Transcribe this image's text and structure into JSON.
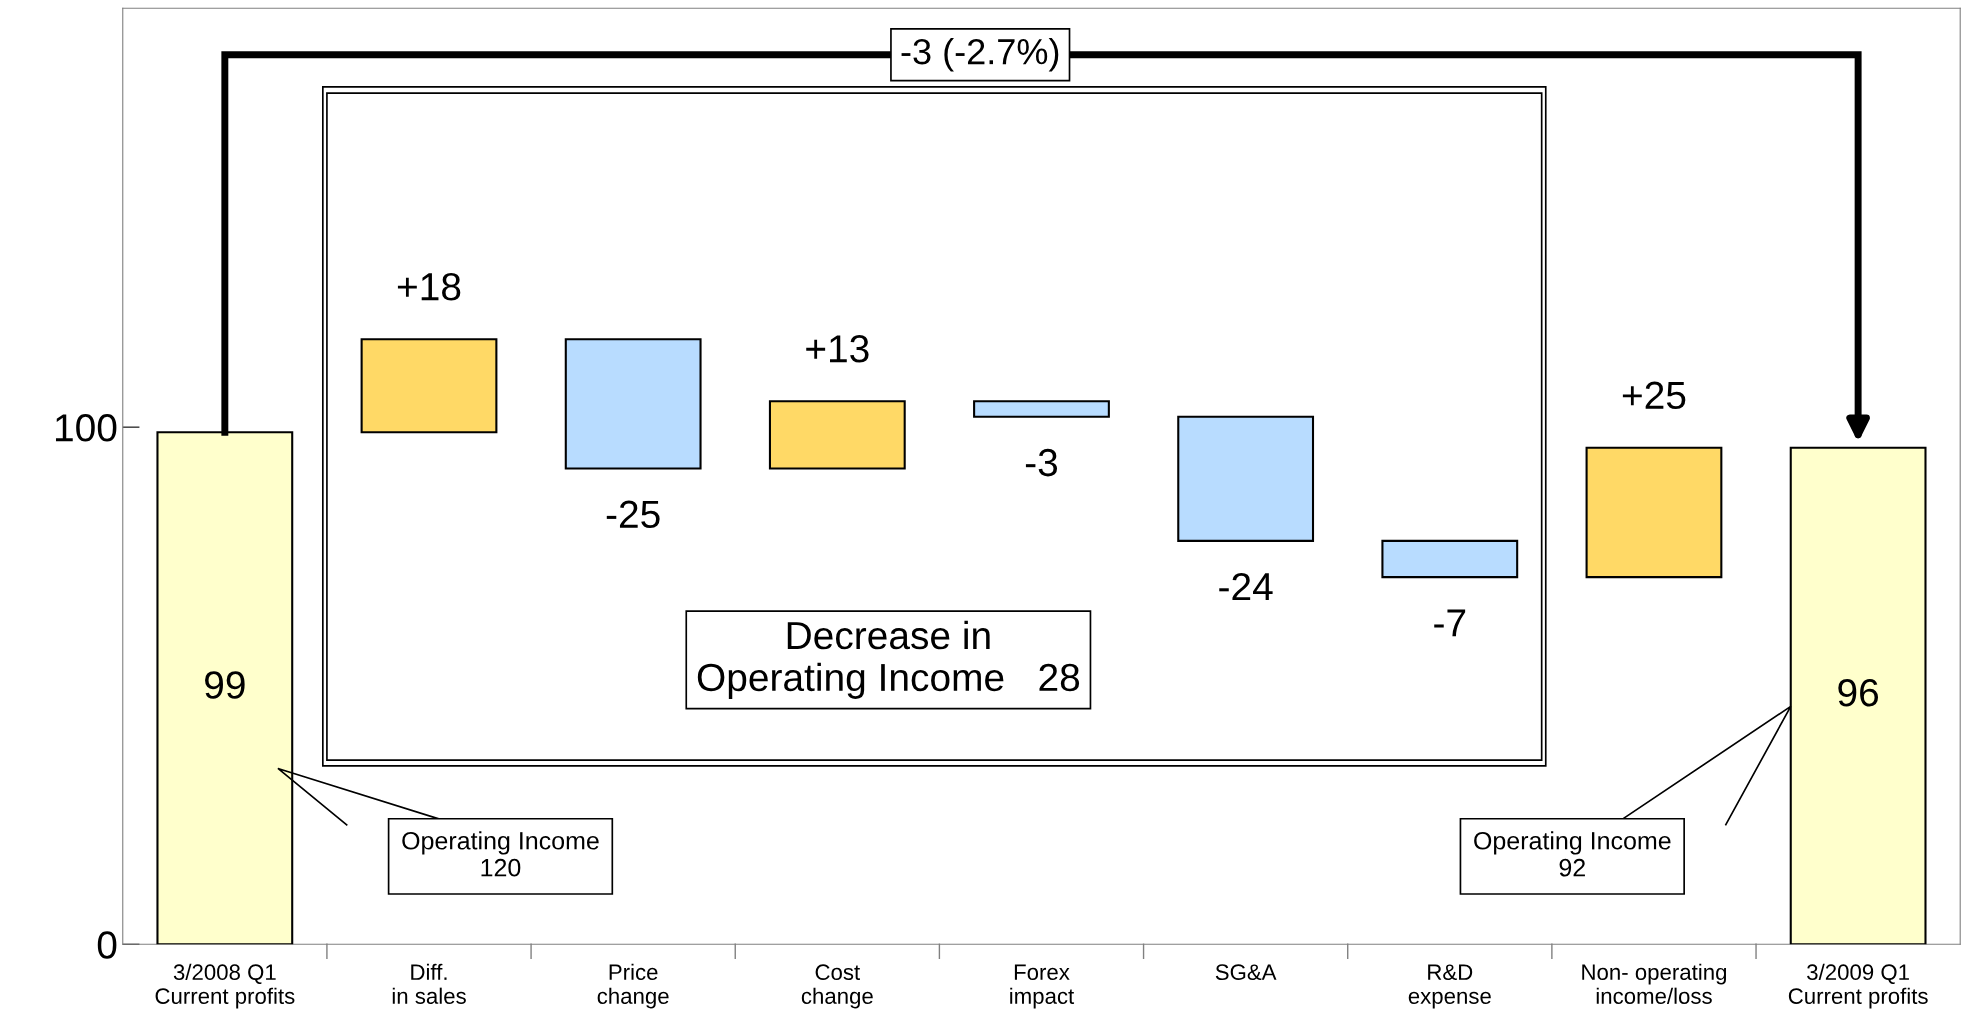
{
  "chart_data": {
    "type": "bar",
    "categories": [
      "3/2008 Q1\nCurrent profits",
      "Diff.\nin sales",
      "Price\nchange",
      "Cost\nchange",
      "Forex\nimpact",
      "SG&A",
      "R&D\nexpense",
      "Non- operating\nincome/loss",
      "3/2009 Q1\nCurrent profits"
    ],
    "values": [
      99,
      18,
      -25,
      13,
      -3,
      -24,
      -7,
      25,
      96
    ],
    "base": [
      0,
      99,
      117,
      92,
      105,
      102,
      78,
      71,
      0
    ],
    "colors": [
      "#ffffcc",
      "#ffd966",
      "#b8dcff",
      "#ffd966",
      "#b8dcff",
      "#b8dcff",
      "#b8dcff",
      "#ffd966",
      "#ffffcc"
    ],
    "value_labels": [
      "99",
      "+18",
      "-25",
      "+13",
      "-3",
      "-24",
      "-7",
      "+25",
      "96"
    ],
    "ylim": [
      0,
      181
    ],
    "yticks": [
      0,
      100
    ],
    "grid": false,
    "legend": false,
    "annotations": [
      "-3 (-2.7%)",
      "Decrease in\nOperating Income   28",
      "Operating Income\n120",
      "Operating Income\n92"
    ]
  }
}
